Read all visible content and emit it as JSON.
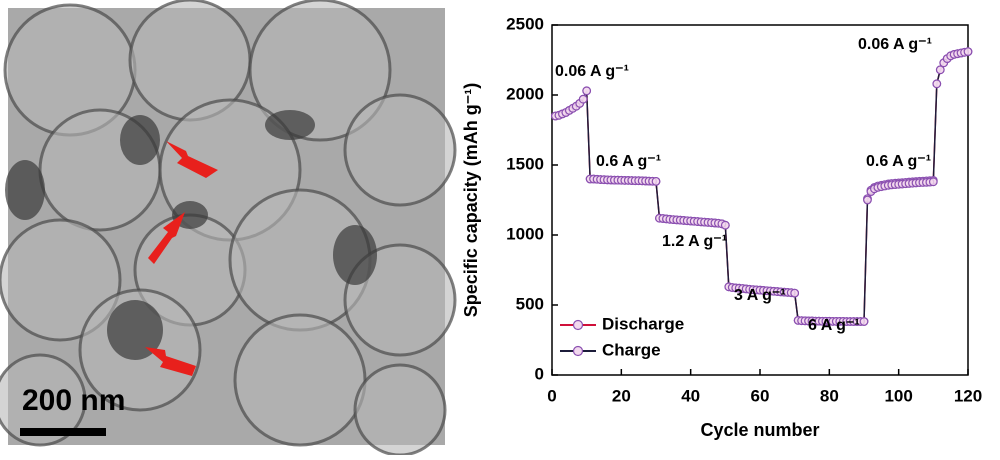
{
  "image": {
    "scale_bar": "200 nm"
  },
  "chart_data": {
    "type": "line",
    "xlabel": "Cycle number",
    "ylabel": "Specific capacity (mAh g⁻¹)",
    "annotations": [
      "0.06 A g⁻¹",
      "0.6 A g⁻¹",
      "1.2 A g⁻¹",
      "3 A g⁻¹",
      "6 A g⁻¹",
      "0.6 A g⁻¹",
      "0.06 A g⁻¹"
    ],
    "xlim": [
      0,
      120
    ],
    "xticks": [
      0,
      20,
      40,
      60,
      80,
      100,
      120
    ],
    "ylim": [
      0,
      2500
    ],
    "yticks": [
      0,
      500,
      1000,
      1500,
      2000,
      2500
    ],
    "legend": "lower left",
    "marker_color": "#8a4fb0",
    "marker_fill": "#f2d8ee",
    "x": [
      1,
      2,
      3,
      4,
      5,
      6,
      7,
      8,
      9,
      10,
      11,
      12,
      13,
      14,
      15,
      16,
      17,
      18,
      19,
      20,
      21,
      22,
      23,
      24,
      25,
      26,
      27,
      28,
      29,
      30,
      31,
      32,
      33,
      34,
      35,
      36,
      37,
      38,
      39,
      40,
      41,
      42,
      43,
      44,
      45,
      46,
      47,
      48,
      49,
      50,
      51,
      52,
      53,
      54,
      55,
      56,
      57,
      58,
      59,
      60,
      61,
      62,
      63,
      64,
      65,
      66,
      67,
      68,
      69,
      70,
      71,
      72,
      73,
      74,
      75,
      76,
      77,
      78,
      79,
      80,
      81,
      82,
      83,
      84,
      85,
      86,
      87,
      88,
      89,
      90,
      91,
      92,
      93,
      94,
      95,
      96,
      97,
      98,
      99,
      100,
      101,
      102,
      103,
      104,
      105,
      106,
      107,
      108,
      109,
      110,
      111,
      112,
      113,
      114,
      115,
      116,
      117,
      118,
      119,
      120
    ],
    "series": [
      {
        "name": "Discharge",
        "color": "#d0103a",
        "values": [
          1850,
          1855,
          1865,
          1875,
          1890,
          1905,
          1920,
          1940,
          1970,
          2030,
          1400,
          1400,
          1398,
          1396,
          1395,
          1394,
          1393,
          1392,
          1392,
          1391,
          1390,
          1390,
          1389,
          1388,
          1388,
          1387,
          1386,
          1385,
          1384,
          1383,
          1120,
          1118,
          1115,
          1112,
          1110,
          1108,
          1106,
          1104,
          1102,
          1100,
          1098,
          1096,
          1094,
          1092,
          1090,
          1088,
          1086,
          1084,
          1080,
          1070,
          630,
          625,
          622,
          620,
          618,
          615,
          612,
          610,
          608,
          606,
          604,
          602,
          600,
          598,
          596,
          594,
          592,
          590,
          588,
          585,
          390,
          388,
          387,
          386,
          386,
          385,
          385,
          384,
          384,
          384,
          383,
          383,
          383,
          383,
          382,
          382,
          382,
          382,
          382,
          382,
          1260,
          1320,
          1340,
          1350,
          1355,
          1360,
          1365,
          1368,
          1370,
          1372,
          1374,
          1376,
          1378,
          1380,
          1382,
          1384,
          1385,
          1386,
          1388,
          1390,
          2080,
          2180,
          2230,
          2260,
          2280,
          2290,
          2295,
          2300,
          2305,
          2310
        ]
      },
      {
        "name": "Charge",
        "color": "#1c1c3a",
        "values": [
          1850,
          1855,
          1865,
          1875,
          1890,
          1905,
          1920,
          1940,
          1970,
          2030,
          1400,
          1400,
          1398,
          1396,
          1395,
          1394,
          1393,
          1392,
          1392,
          1391,
          1390,
          1390,
          1389,
          1388,
          1388,
          1387,
          1386,
          1385,
          1384,
          1383,
          1120,
          1118,
          1115,
          1112,
          1110,
          1108,
          1106,
          1104,
          1102,
          1100,
          1098,
          1096,
          1094,
          1092,
          1090,
          1088,
          1086,
          1084,
          1080,
          1070,
          630,
          625,
          622,
          620,
          618,
          615,
          612,
          610,
          608,
          606,
          604,
          602,
          600,
          598,
          596,
          594,
          592,
          590,
          588,
          585,
          390,
          388,
          387,
          386,
          386,
          385,
          385,
          384,
          384,
          384,
          383,
          383,
          383,
          383,
          382,
          382,
          382,
          382,
          382,
          382,
          1250,
          1310,
          1330,
          1340,
          1345,
          1350,
          1355,
          1358,
          1360,
          1362,
          1364,
          1366,
          1368,
          1370,
          1372,
          1374,
          1375,
          1376,
          1378,
          1380,
          2080,
          2180,
          2230,
          2260,
          2280,
          2290,
          2295,
          2300,
          2305,
          2310
        ]
      }
    ]
  }
}
